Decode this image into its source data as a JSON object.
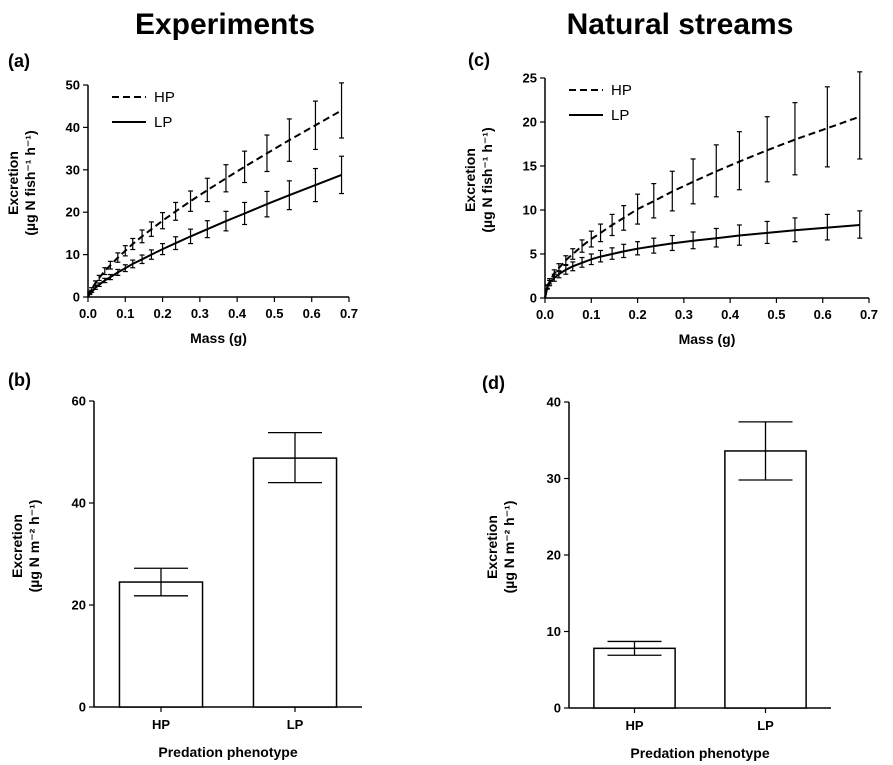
{
  "column_titles": [
    "Experiments",
    "Natural streams"
  ],
  "chart_data": [
    {
      "panel": "(a)",
      "type": "line",
      "xlabel": "Mass (g)",
      "ylabel": [
        "Excretion",
        "(µg N fish⁻¹ h⁻¹)"
      ],
      "xlim": [
        0,
        0.7
      ],
      "ylim": [
        0,
        50
      ],
      "xticks": [
        "0.0",
        "0.1",
        "0.2",
        "0.3",
        "0.4",
        "0.5",
        "0.6",
        "0.7"
      ],
      "yticks": [
        "0",
        "10",
        "20",
        "30",
        "40",
        "50"
      ],
      "legend": "top-left",
      "x": [
        0.005,
        0.01,
        0.02,
        0.03,
        0.045,
        0.06,
        0.08,
        0.1,
        0.12,
        0.145,
        0.17,
        0.2,
        0.235,
        0.275,
        0.32,
        0.37,
        0.42,
        0.48,
        0.54,
        0.61,
        0.68
      ],
      "series": [
        {
          "name": "HP",
          "style": "dashed",
          "values": [
            1.1,
            1.9,
            3.3,
            4.5,
            6.1,
            7.5,
            9.3,
            10.9,
            12.5,
            14.3,
            16.0,
            18.0,
            20.2,
            22.6,
            25.2,
            28.0,
            30.7,
            33.9,
            37.0,
            40.5,
            44.0
          ],
          "err_low": [
            0.9,
            1.6,
            2.8,
            3.9,
            5.3,
            6.6,
            8.2,
            9.7,
            11.2,
            12.8,
            14.3,
            16.1,
            18.1,
            20.2,
            22.5,
            24.8,
            27.0,
            29.6,
            32.0,
            34.8,
            37.5
          ],
          "err_high": [
            1.3,
            2.2,
            3.8,
            5.1,
            6.9,
            8.4,
            10.4,
            12.1,
            13.8,
            15.8,
            17.7,
            19.9,
            22.3,
            25.0,
            28.0,
            31.2,
            34.4,
            38.2,
            42.0,
            46.2,
            50.5
          ]
        },
        {
          "name": "LP",
          "style": "solid",
          "values": [
            0.8,
            1.3,
            2.2,
            2.9,
            3.9,
            4.7,
            5.8,
            6.8,
            7.8,
            8.9,
            10.0,
            11.3,
            12.7,
            14.3,
            16.0,
            17.9,
            19.7,
            21.9,
            24.0,
            26.4,
            28.8
          ],
          "err_low": [
            0.6,
            1.1,
            1.8,
            2.5,
            3.4,
            4.1,
            5.1,
            6.0,
            6.9,
            7.9,
            8.9,
            10.0,
            11.2,
            12.6,
            14.0,
            15.6,
            17.1,
            18.9,
            20.6,
            22.5,
            24.4
          ],
          "err_high": [
            1.0,
            1.5,
            2.6,
            3.3,
            4.4,
            5.3,
            6.5,
            7.6,
            8.7,
            9.9,
            11.1,
            12.6,
            14.2,
            16.0,
            18.0,
            20.2,
            22.3,
            24.9,
            27.4,
            30.3,
            33.2
          ]
        }
      ]
    },
    {
      "panel": "(b)",
      "type": "bar",
      "xlabel": "Predation phenotype",
      "ylabel": [
        "Excretion",
        "(µg N m⁻² h⁻¹)"
      ],
      "ylim": [
        0,
        60
      ],
      "yticks": [
        "0",
        "20",
        "40",
        "60"
      ],
      "categories": [
        "HP",
        "LP"
      ],
      "values": [
        24.5,
        48.8
      ],
      "err_low": [
        21.8,
        44.0
      ],
      "err_high": [
        27.2,
        53.8
      ]
    },
    {
      "panel": "(c)",
      "type": "line",
      "xlabel": "Mass (g)",
      "ylabel": [
        "Excretion",
        "(µg N fish⁻¹ h⁻¹)"
      ],
      "xlim": [
        0,
        0.7
      ],
      "ylim": [
        0,
        25
      ],
      "xticks": [
        "0.0",
        "0.1",
        "0.2",
        "0.3",
        "0.4",
        "0.5",
        "0.6",
        "0.7"
      ],
      "yticks": [
        "0",
        "5",
        "10",
        "15",
        "20",
        "25"
      ],
      "legend": "top-left",
      "x": [
        0.005,
        0.01,
        0.02,
        0.03,
        0.045,
        0.06,
        0.08,
        0.1,
        0.12,
        0.145,
        0.17,
        0.2,
        0.235,
        0.275,
        0.32,
        0.37,
        0.42,
        0.48,
        0.54,
        0.61,
        0.68
      ],
      "series": [
        {
          "name": "HP",
          "style": "dashed",
          "values": [
            1.3,
            1.9,
            2.8,
            3.4,
            4.3,
            5.0,
            5.9,
            6.7,
            7.4,
            8.3,
            9.1,
            10.1,
            11.0,
            12.1,
            13.2,
            14.4,
            15.5,
            16.8,
            18.0,
            19.3,
            20.6
          ],
          "err_low": [
            1.1,
            1.6,
            2.4,
            3.0,
            3.8,
            4.4,
            5.2,
            5.8,
            6.4,
            7.1,
            7.7,
            8.4,
            9.1,
            9.9,
            10.7,
            11.5,
            12.3,
            13.2,
            14.0,
            14.9,
            15.8
          ],
          "err_high": [
            1.5,
            2.2,
            3.2,
            3.9,
            4.8,
            5.6,
            6.6,
            7.6,
            8.4,
            9.5,
            10.5,
            11.8,
            13.0,
            14.4,
            15.8,
            17.4,
            18.9,
            20.6,
            22.2,
            24.0,
            25.7
          ]
        },
        {
          "name": "LP",
          "style": "solid",
          "values": [
            1.2,
            1.7,
            2.3,
            2.7,
            3.2,
            3.6,
            4.0,
            4.4,
            4.7,
            5.0,
            5.3,
            5.6,
            5.9,
            6.2,
            6.5,
            6.8,
            7.1,
            7.4,
            7.7,
            8.0,
            8.3
          ],
          "err_low": [
            1.0,
            1.4,
            1.9,
            2.3,
            2.7,
            3.1,
            3.5,
            3.8,
            4.1,
            4.4,
            4.6,
            4.9,
            5.1,
            5.4,
            5.6,
            5.8,
            6.0,
            6.2,
            6.4,
            6.6,
            6.8
          ],
          "err_high": [
            1.4,
            2.0,
            2.7,
            3.1,
            3.7,
            4.1,
            4.6,
            5.0,
            5.4,
            5.7,
            6.1,
            6.4,
            6.8,
            7.1,
            7.5,
            7.9,
            8.3,
            8.7,
            9.1,
            9.5,
            9.9
          ]
        }
      ]
    },
    {
      "panel": "(d)",
      "type": "bar",
      "xlabel": "Predation phenotype",
      "ylabel": [
        "Excretion",
        "(µg N m⁻² h⁻¹)"
      ],
      "ylim": [
        0,
        40
      ],
      "yticks": [
        "0",
        "10",
        "20",
        "30",
        "40"
      ],
      "categories": [
        "HP",
        "LP"
      ],
      "values": [
        7.8,
        33.6
      ],
      "err_low": [
        6.9,
        29.8
      ],
      "err_high": [
        8.7,
        37.4
      ]
    }
  ]
}
